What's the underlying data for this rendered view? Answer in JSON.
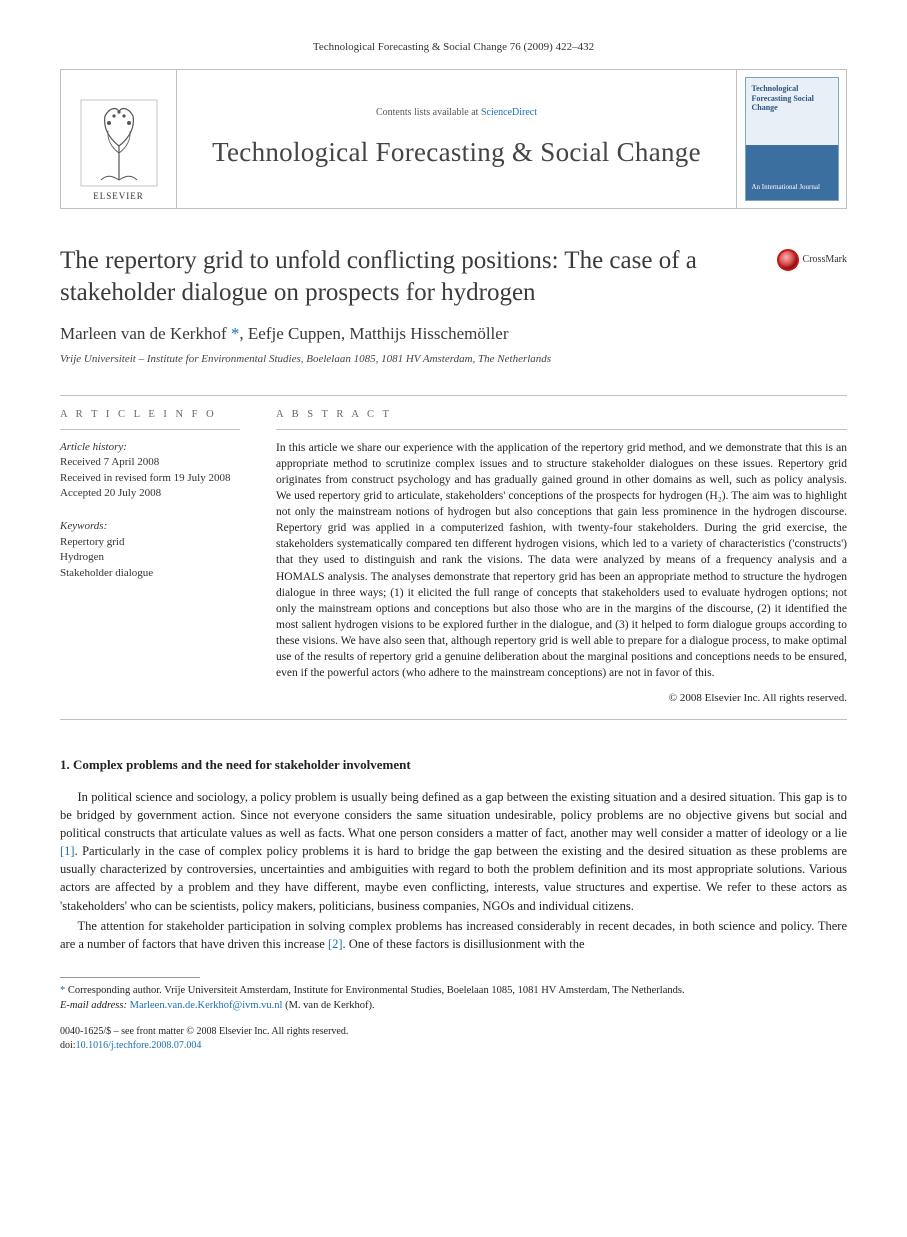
{
  "running_head": "Technological Forecasting & Social Change 76 (2009) 422–432",
  "masthead": {
    "publisher": "ELSEVIER",
    "contents_prefix": "Contents lists available at ",
    "contents_link": "ScienceDirect",
    "journal_name": "Technological Forecasting & Social Change",
    "cover_title": "Technological Forecasting Social Change",
    "cover_sub": "An International Journal"
  },
  "colors": {
    "link": "#1b6fb3",
    "border": "#bfbfbf",
    "body_text": "#222222",
    "heading_gray": "#666666"
  },
  "article": {
    "title": "The repertory grid to unfold conflicting positions: The case of a stakeholder dialogue on prospects for hydrogen",
    "authors_html": "Marleen van de Kerkhof <span class='corr'>*</span>, Eefje Cuppen, Matthijs Hisschemöller",
    "affiliation": "Vrije Universiteit – Institute for Environmental Studies, Boelelaan 1085, 1081 HV Amsterdam, The Netherlands",
    "crossmark_label": "CrossMark"
  },
  "info": {
    "heading": "A R T I C L E   I N F O",
    "history_label": "Article history:",
    "history": [
      "Received 7 April 2008",
      "Received in revised form 19 July 2008",
      "Accepted 20 July 2008"
    ],
    "keywords_label": "Keywords:",
    "keywords": [
      "Repertory grid",
      "Hydrogen",
      "Stakeholder dialogue"
    ]
  },
  "abstract": {
    "heading": "A B S T R A C T",
    "text": "In this article we share our experience with the application of the repertory grid method, and we demonstrate that this is an appropriate method to scrutinize complex issues and to structure stakeholder dialogues on these issues. Repertory grid originates from construct psychology and has gradually gained ground in other domains as well, such as policy analysis. We used repertory grid to articulate, stakeholders' conceptions of the prospects for hydrogen (H₂). The aim was to highlight not only the mainstream notions of hydrogen but also conceptions that gain less prominence in the hydrogen discourse. Repertory grid was applied in a computerized fashion, with twenty-four stakeholders. During the grid exercise, the stakeholders systematically compared ten different hydrogen visions, which led to a variety of characteristics ('constructs') that they used to distinguish and rank the visions. The data were analyzed by means of a frequency analysis and a HOMALS analysis. The analyses demonstrate that repertory grid has been an appropriate method to structure the hydrogen dialogue in three ways; (1) it elicited the full range of concepts that stakeholders used to evaluate hydrogen options; not only the mainstream options and conceptions but also those who are in the margins of the discourse, (2) it identified the most salient hydrogen visions to be explored further in the dialogue, and (3) it helped to form dialogue groups according to these visions. We have also seen that, although repertory grid is well able to prepare for a dialogue process, to make optimal use of the results of repertory grid a genuine deliberation about the marginal positions and conceptions needs to be ensured, even if the powerful actors (who adhere to the mainstream conceptions) are not in favor of this.",
    "copyright": "© 2008 Elsevier Inc. All rights reserved."
  },
  "section1": {
    "heading": "1. Complex problems and the need for stakeholder involvement",
    "para1": "In political science and sociology, a policy problem is usually being defined as a gap between the existing situation and a desired situation. This gap is to be bridged by government action. Since not everyone considers the same situation undesirable, policy problems are no objective givens but social and political constructs that articulate values as well as facts. What one person considers a matter of fact, another may well consider a matter of ideology or a lie [1]. Particularly in the case of complex policy problems it is hard to bridge the gap between the existing and the desired situation as these problems are usually characterized by controversies, uncertainties and ambiguities with regard to both the problem definition and its most appropriate solutions. Various actors are affected by a problem and they have different, maybe even conflicting, interests, value structures and expertise. We refer to these actors as 'stakeholders' who can be scientists, policy makers, politicians, business companies, NGOs and individual citizens.",
    "para2": "The attention for stakeholder participation in solving complex problems has increased considerably in recent decades, in both science and policy. There are a number of factors that have driven this increase [2]. One of these factors is disillusionment with the",
    "ref1": "[1]",
    "ref2": "[2]"
  },
  "footnote": {
    "corr": "* Corresponding author. Vrije Universiteit Amsterdam, Institute for Environmental Studies, Boelelaan 1085, 1081 HV Amsterdam, The Netherlands.",
    "email_label": "E-mail address:",
    "email": "Marleen.van.de.Kerkhof@ivm.vu.nl",
    "email_after": " (M. van de Kerkhof)."
  },
  "bottom": {
    "line1": "0040-1625/$ – see front matter © 2008 Elsevier Inc. All rights reserved.",
    "doi_label": "doi:",
    "doi": "10.1016/j.techfore.2008.07.004"
  }
}
